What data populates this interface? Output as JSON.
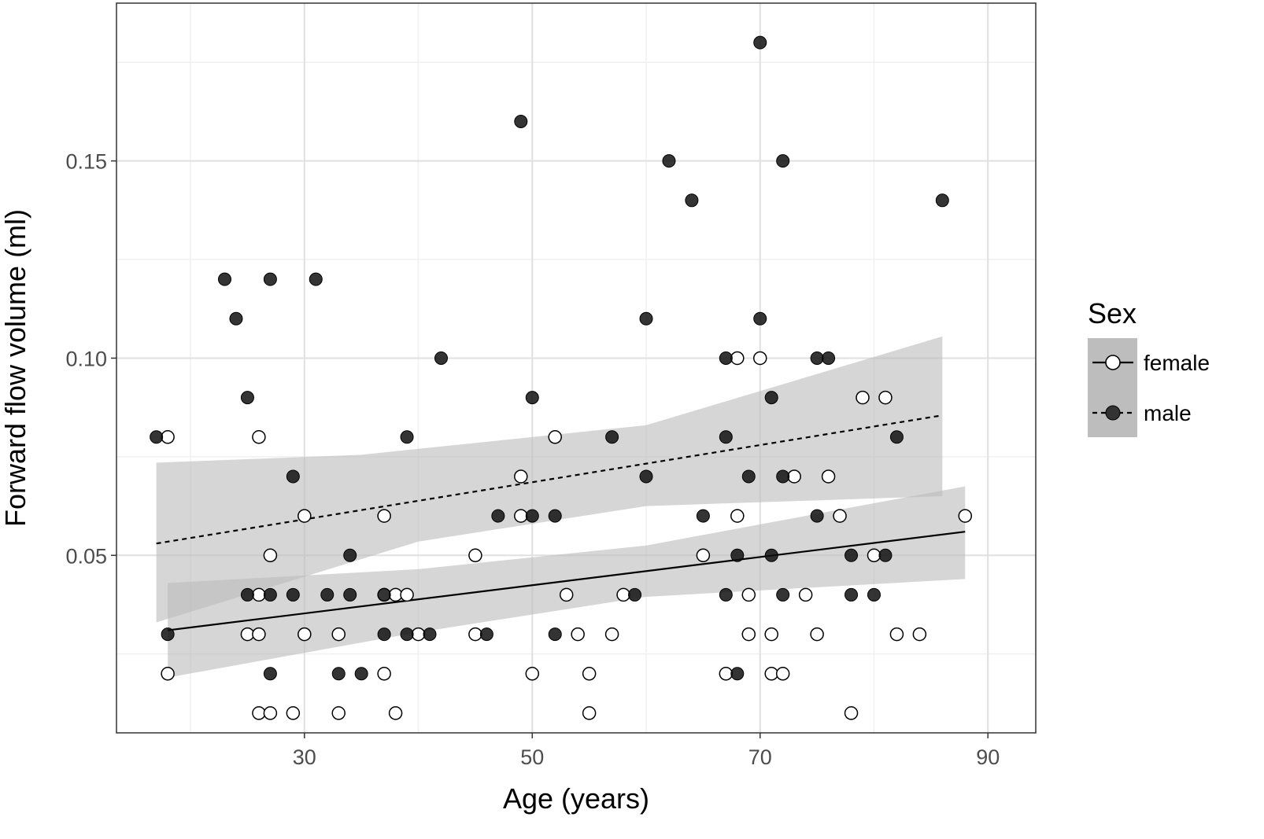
{
  "chart_data": {
    "type": "scatter",
    "title": "",
    "xlabel": "Age (years)",
    "ylabel": "Forward flow volume (ml)",
    "xlim": [
      13.5,
      94.2
    ],
    "ylim": [
      0.005,
      0.19
    ],
    "x_ticks": [
      30,
      50,
      70,
      90
    ],
    "x_tick_labels": [
      "30",
      "50",
      "70",
      "90"
    ],
    "y_ticks": [
      0.05,
      0.1,
      0.15
    ],
    "y_tick_labels": [
      "0.05",
      "0.10",
      "0.15"
    ],
    "x_minor_gridlines": [
      20,
      40,
      60,
      80
    ],
    "y_minor_gridlines": [
      0.025,
      0.075,
      0.125,
      0.175
    ],
    "grid": true,
    "legend": {
      "title": "Sex",
      "position": "right",
      "entries": [
        {
          "label": "female",
          "marker": "open-circle",
          "linestyle": "solid"
        },
        {
          "label": "male",
          "marker": "filled-circle",
          "linestyle": "dashed"
        }
      ]
    },
    "series": [
      {
        "name": "female",
        "marker": "open",
        "points": [
          [
            18,
            0.08
          ],
          [
            18,
            0.02
          ],
          [
            26,
            0.08
          ],
          [
            26,
            0.04
          ],
          [
            25,
            0.03
          ],
          [
            26,
            0.03
          ],
          [
            26,
            0.01
          ],
          [
            27,
            0.01
          ],
          [
            27,
            0.05
          ],
          [
            29,
            0.01
          ],
          [
            30,
            0.06
          ],
          [
            30,
            0.03
          ],
          [
            33,
            0.03
          ],
          [
            33,
            0.01
          ],
          [
            37,
            0.06
          ],
          [
            37,
            0.04
          ],
          [
            37,
            0.02
          ],
          [
            38,
            0.04
          ],
          [
            38,
            0.01
          ],
          [
            39,
            0.04
          ],
          [
            40,
            0.03
          ],
          [
            45,
            0.05
          ],
          [
            45,
            0.03
          ],
          [
            49,
            0.07
          ],
          [
            49,
            0.06
          ],
          [
            50,
            0.02
          ],
          [
            52,
            0.08
          ],
          [
            53,
            0.04
          ],
          [
            54,
            0.03
          ],
          [
            55,
            0.02
          ],
          [
            55,
            0.01
          ],
          [
            57,
            0.03
          ],
          [
            58,
            0.04
          ],
          [
            65,
            0.05
          ],
          [
            67,
            0.02
          ],
          [
            68,
            0.1
          ],
          [
            68,
            0.06
          ],
          [
            69,
            0.04
          ],
          [
            69,
            0.03
          ],
          [
            70,
            0.1
          ],
          [
            71,
            0.03
          ],
          [
            71,
            0.02
          ],
          [
            72,
            0.02
          ],
          [
            73,
            0.07
          ],
          [
            74,
            0.04
          ],
          [
            75,
            0.03
          ],
          [
            76,
            0.07
          ],
          [
            77,
            0.06
          ],
          [
            78,
            0.01
          ],
          [
            79,
            0.09
          ],
          [
            80,
            0.05
          ],
          [
            81,
            0.09
          ],
          [
            82,
            0.03
          ],
          [
            84,
            0.03
          ],
          [
            88,
            0.06
          ]
        ],
        "trend": {
          "x0": 18,
          "y0": 0.031,
          "x1": 88,
          "y1": 0.056
        },
        "ci_lower": [
          [
            18,
            0.019
          ],
          [
            40,
            0.0305
          ],
          [
            60,
            0.0395
          ],
          [
            88,
            0.044
          ]
        ],
        "ci_upper": [
          [
            18,
            0.043
          ],
          [
            40,
            0.0465
          ],
          [
            60,
            0.0525
          ],
          [
            88,
            0.0675
          ]
        ]
      },
      {
        "name": "male",
        "marker": "filled",
        "points": [
          [
            17,
            0.08
          ],
          [
            18,
            0.03
          ],
          [
            23,
            0.12
          ],
          [
            24,
            0.11
          ],
          [
            25,
            0.09
          ],
          [
            25,
            0.04
          ],
          [
            27,
            0.12
          ],
          [
            27,
            0.04
          ],
          [
            27,
            0.02
          ],
          [
            29,
            0.07
          ],
          [
            29,
            0.04
          ],
          [
            31,
            0.12
          ],
          [
            32,
            0.04
          ],
          [
            33,
            0.02
          ],
          [
            34,
            0.05
          ],
          [
            34,
            0.04
          ],
          [
            35,
            0.02
          ],
          [
            37,
            0.04
          ],
          [
            37,
            0.03
          ],
          [
            39,
            0.08
          ],
          [
            39,
            0.03
          ],
          [
            41,
            0.03
          ],
          [
            42,
            0.1
          ],
          [
            46,
            0.03
          ],
          [
            47,
            0.06
          ],
          [
            49,
            0.16
          ],
          [
            50,
            0.09
          ],
          [
            50,
            0.06
          ],
          [
            52,
            0.06
          ],
          [
            52,
            0.03
          ],
          [
            57,
            0.08
          ],
          [
            59,
            0.04
          ],
          [
            60,
            0.11
          ],
          [
            60,
            0.07
          ],
          [
            62,
            0.15
          ],
          [
            64,
            0.14
          ],
          [
            65,
            0.06
          ],
          [
            67,
            0.1
          ],
          [
            67,
            0.08
          ],
          [
            67,
            0.04
          ],
          [
            68,
            0.05
          ],
          [
            68,
            0.02
          ],
          [
            69,
            0.07
          ],
          [
            70,
            0.18
          ],
          [
            70,
            0.11
          ],
          [
            71,
            0.09
          ],
          [
            71,
            0.05
          ],
          [
            72,
            0.15
          ],
          [
            72,
            0.07
          ],
          [
            72,
            0.04
          ],
          [
            75,
            0.1
          ],
          [
            75,
            0.06
          ],
          [
            76,
            0.1
          ],
          [
            78,
            0.05
          ],
          [
            78,
            0.04
          ],
          [
            80,
            0.04
          ],
          [
            81,
            0.05
          ],
          [
            82,
            0.08
          ],
          [
            86,
            0.14
          ]
        ],
        "trend": {
          "x0": 17,
          "y0": 0.053,
          "x1": 86,
          "y1": 0.0855
        },
        "ci_lower": [
          [
            17,
            0.033
          ],
          [
            40,
            0.0535
          ],
          [
            60,
            0.0625
          ],
          [
            86,
            0.065
          ]
        ],
        "ci_upper": [
          [
            17,
            0.0735
          ],
          [
            35,
            0.0755
          ],
          [
            60,
            0.083
          ],
          [
            86,
            0.1055
          ]
        ]
      }
    ]
  },
  "colors": {
    "panel_border": "#333333",
    "grid_major": "#e0e0e0",
    "grid_minor": "#f0f0f0",
    "ci_band": "#bdbdbd",
    "female_point_fill": "#ffffff",
    "male_point_fill": "#111111",
    "line": "#000000",
    "tick_text": "#4d4d4d"
  }
}
